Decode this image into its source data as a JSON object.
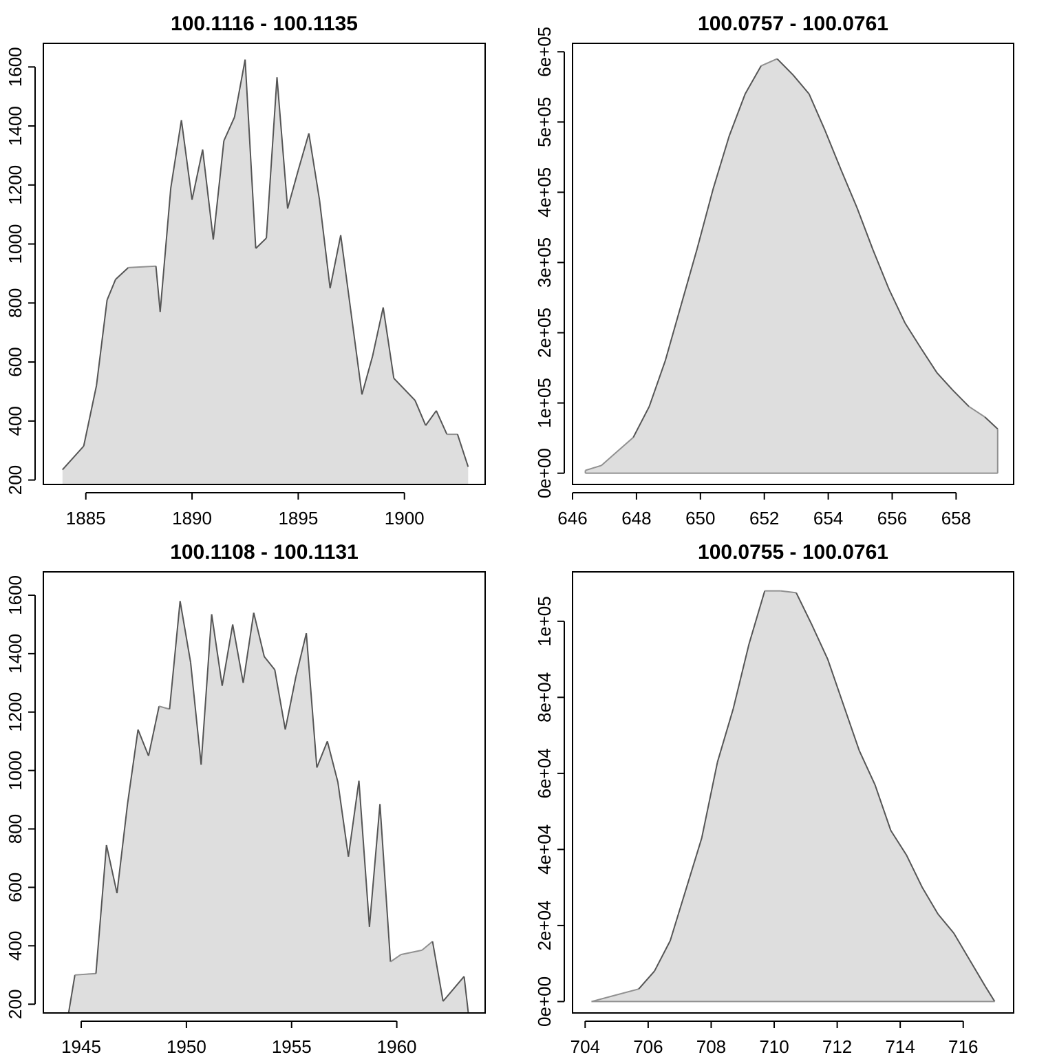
{
  "colors": {
    "fill": "#dedede",
    "line_dark": "#555555",
    "line_light": "#909090",
    "axis": "#000000"
  },
  "chart_data": [
    {
      "type": "area",
      "title": "100.1116 - 100.1135",
      "xlabel": "",
      "ylabel": "",
      "xlim": [
        1883.0,
        1903.8
      ],
      "ylim": [
        185,
        1680
      ],
      "xticks": [
        1885,
        1890,
        1895,
        1900
      ],
      "yticks": [
        200,
        400,
        600,
        800,
        1000,
        1200,
        1400,
        1600
      ],
      "ytick_labels": [
        "200",
        "400",
        "600",
        "800",
        "1000",
        "1200",
        "1400",
        "1600"
      ],
      "grid": false,
      "baseline": 185,
      "x": [
        1883.9,
        1884.9,
        1885.5,
        1886.0,
        1886.4,
        1887.0,
        1888.3,
        1888.5,
        1889.0,
        1889.5,
        1890.0,
        1890.5,
        1891.0,
        1891.5,
        1892.0,
        1892.5,
        1893.0,
        1893.5,
        1894.0,
        1894.5,
        1895.0,
        1895.5,
        1896.0,
        1896.5,
        1897.0,
        1897.5,
        1898.0,
        1898.5,
        1899.0,
        1899.5,
        1900.5,
        1901.0,
        1901.5,
        1902.0,
        1902.5,
        1903.0
      ],
      "y": [
        235,
        315,
        520,
        810,
        880,
        920,
        925,
        770,
        1190,
        1420,
        1150,
        1320,
        1015,
        1350,
        1430,
        1625,
        985,
        1020,
        1565,
        1120,
        1250,
        1375,
        1150,
        850,
        1030,
        760,
        490,
        620,
        785,
        545,
        470,
        385,
        435,
        355,
        355,
        245
      ]
    },
    {
      "type": "area",
      "title": "100.0757 - 100.0761",
      "xlabel": "",
      "ylabel": "",
      "xlim": [
        646.0,
        659.8
      ],
      "ylim": [
        -16000,
        612000
      ],
      "xticks": [
        646,
        648,
        650,
        652,
        654,
        656,
        658
      ],
      "yticks": [
        0,
        100000,
        200000,
        300000,
        400000,
        500000,
        600000
      ],
      "ytick_labels": [
        "0e+00",
        "1e+05",
        "2e+05",
        "3e+05",
        "4e+05",
        "5e+05",
        "6e+05"
      ],
      "grid": false,
      "baseline": 0,
      "x": [
        646.4,
        646.9,
        647.9,
        648.4,
        648.9,
        649.4,
        649.9,
        650.4,
        650.9,
        651.4,
        651.9,
        652.4,
        652.9,
        653.4,
        653.9,
        654.4,
        654.9,
        655.4,
        655.9,
        656.4,
        656.9,
        657.4,
        657.9,
        658.4,
        658.9,
        659.3
      ],
      "y": [
        4000,
        11000,
        51000,
        95000,
        160000,
        240000,
        320000,
        405000,
        480000,
        540000,
        580000,
        590000,
        567000,
        540000,
        488000,
        432000,
        378000,
        318000,
        262000,
        214000,
        178000,
        143000,
        118000,
        95000,
        80000,
        63000
      ]
    },
    {
      "type": "area",
      "title": "100.1108 - 100.1131",
      "xlabel": "",
      "ylabel": "",
      "xlim": [
        1943.2,
        1964.2
      ],
      "ylim": [
        170,
        1680
      ],
      "xticks": [
        1945,
        1950,
        1955,
        1960
      ],
      "yticks": [
        200,
        400,
        600,
        800,
        1000,
        1200,
        1400,
        1600
      ],
      "ytick_labels": [
        "200",
        "400",
        "600",
        "800",
        "1000",
        "1200",
        "1400",
        "1600"
      ],
      "grid": false,
      "baseline": 170,
      "x": [
        1944.4,
        1944.7,
        1945.7,
        1946.2,
        1946.7,
        1947.2,
        1947.7,
        1948.2,
        1948.7,
        1949.2,
        1949.7,
        1950.2,
        1950.7,
        1951.2,
        1951.7,
        1952.2,
        1952.7,
        1953.2,
        1953.7,
        1954.2,
        1954.7,
        1955.2,
        1955.7,
        1956.2,
        1956.7,
        1957.2,
        1957.7,
        1958.2,
        1958.7,
        1959.2,
        1959.7,
        1960.2,
        1961.2,
        1961.7,
        1962.2,
        1963.2,
        1963.4
      ],
      "y": [
        170,
        300,
        305,
        745,
        580,
        885,
        1140,
        1050,
        1220,
        1210,
        1580,
        1370,
        1020,
        1535,
        1290,
        1500,
        1300,
        1540,
        1390,
        1345,
        1140,
        1320,
        1470,
        1010,
        1100,
        960,
        705,
        965,
        465,
        885,
        345,
        370,
        385,
        415,
        210,
        295,
        170
      ]
    },
    {
      "type": "area",
      "title": "100.0755 - 100.0761",
      "xlabel": "",
      "ylabel": "",
      "xlim": [
        703.6,
        717.6
      ],
      "ylim": [
        -3000,
        113000
      ],
      "xticks": [
        704,
        706,
        708,
        710,
        712,
        714,
        716
      ],
      "yticks": [
        0,
        20000,
        40000,
        60000,
        80000,
        100000
      ],
      "ytick_labels": [
        "0e+00",
        "2e+04",
        "4e+04",
        "6e+04",
        "8e+04",
        "1e+05"
      ],
      "grid": false,
      "baseline": 0,
      "x": [
        704.2,
        705.7,
        706.2,
        706.7,
        707.7,
        708.2,
        708.7,
        709.2,
        709.7,
        710.2,
        710.7,
        711.2,
        711.7,
        712.2,
        712.7,
        713.2,
        713.7,
        714.2,
        714.7,
        715.2,
        715.7,
        716.2,
        716.7,
        717.0
      ],
      "y": [
        0,
        3300,
        8000,
        16000,
        43000,
        63000,
        77000,
        94000,
        108000,
        108000,
        107500,
        99000,
        90000,
        78000,
        66000,
        57000,
        45000,
        38500,
        30000,
        23000,
        18000,
        11000,
        4000,
        0
      ]
    }
  ]
}
